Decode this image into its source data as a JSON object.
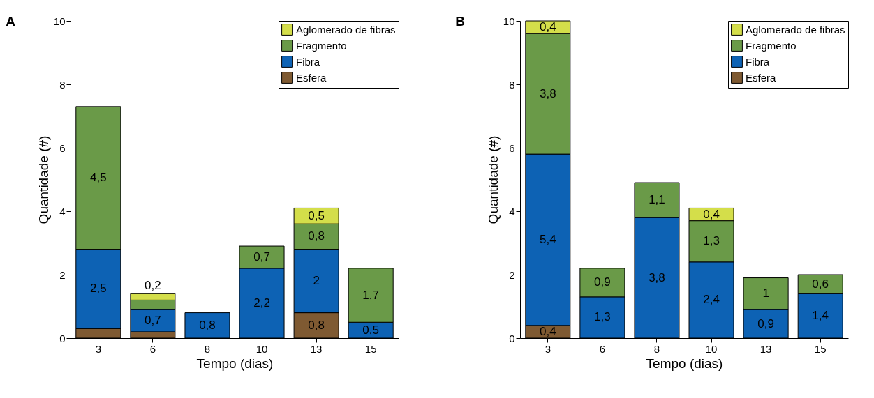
{
  "chart_data": [
    {
      "type": "bar",
      "stacked": true,
      "annotations": [
        "A"
      ],
      "xlabel": "Tempo (dias)",
      "ylabel": "Quantidade (#)",
      "categories": [
        "3",
        "6",
        "8",
        "10",
        "13",
        "15"
      ],
      "ylim": [
        0,
        10
      ],
      "yticks": [
        0,
        2,
        4,
        6,
        8,
        10
      ],
      "legend": "top right",
      "grid": false,
      "series": [
        {
          "name": "Esfera",
          "color": "#7f5a32",
          "values": [
            0.3,
            0.2,
            null,
            null,
            0.8,
            null
          ],
          "value_labels": [
            null,
            null,
            null,
            null,
            "0,8",
            null
          ]
        },
        {
          "name": "Fibra",
          "color": "#0d62b4",
          "values": [
            2.5,
            0.7,
            0.8,
            2.2,
            2,
            0.5
          ],
          "value_labels": [
            "2,5",
            "0,7",
            "0,8",
            "2,2",
            "2",
            "0,5"
          ]
        },
        {
          "name": "Fragmento",
          "color": "#6a9a48",
          "values": [
            4.5,
            0.3,
            null,
            0.7,
            0.8,
            1.7
          ],
          "value_labels": [
            "4,5",
            null,
            null,
            "0,7",
            "0,8",
            "1,7"
          ]
        },
        {
          "name": "Aglomerado de fibras",
          "color": "#d4de4a",
          "values": [
            null,
            0.2,
            null,
            null,
            0.5,
            null
          ],
          "value_labels": [
            null,
            "0,2",
            null,
            null,
            "0,5",
            null
          ]
        }
      ]
    },
    {
      "type": "bar",
      "stacked": true,
      "annotations": [
        "B"
      ],
      "xlabel": "Tempo (dias)",
      "ylabel": "Quantidade (#)",
      "categories": [
        "3",
        "6",
        "8",
        "10",
        "13",
        "15"
      ],
      "ylim": [
        0,
        10
      ],
      "yticks": [
        0,
        2,
        4,
        6,
        8,
        10
      ],
      "legend": "top right",
      "grid": false,
      "series": [
        {
          "name": "Esfera",
          "color": "#7f5a32",
          "values": [
            0.4,
            null,
            null,
            null,
            null,
            null
          ],
          "value_labels": [
            "0,4",
            null,
            null,
            null,
            null,
            null
          ]
        },
        {
          "name": "Fibra",
          "color": "#0d62b4",
          "values": [
            5.4,
            1.3,
            3.8,
            2.4,
            0.9,
            1.4
          ],
          "value_labels": [
            "5,4",
            "1,3",
            "3,8",
            "2,4",
            "0,9",
            "1,4"
          ]
        },
        {
          "name": "Fragmento",
          "color": "#6a9a48",
          "values": [
            3.8,
            0.9,
            1.1,
            1.3,
            1,
            0.6
          ],
          "value_labels": [
            "3,8",
            "0,9",
            "1,1",
            "1,3",
            "1",
            "0,6"
          ]
        },
        {
          "name": "Aglomerado de fibras",
          "color": "#d4de4a",
          "values": [
            0.4,
            null,
            null,
            0.4,
            null,
            null
          ],
          "value_labels": [
            "0,4",
            null,
            null,
            "0,4",
            null,
            null
          ]
        }
      ]
    }
  ]
}
